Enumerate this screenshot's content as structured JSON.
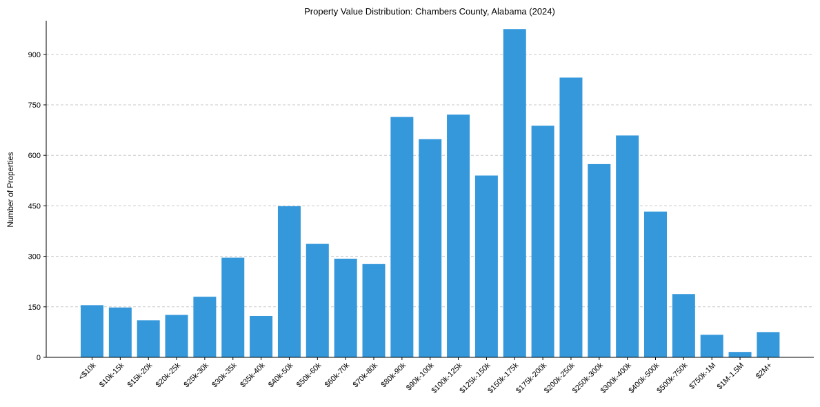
{
  "chart_data": {
    "type": "bar",
    "title": "Property Value Distribution: Chambers County, Alabama (2024)",
    "xlabel": "",
    "ylabel": "Number of Properties",
    "ylim": [
      0,
      1000
    ],
    "yticks": [
      0,
      150,
      300,
      450,
      600,
      750,
      900
    ],
    "grid": "y-dashed",
    "bar_color": "#3498db",
    "categories": [
      "<$10k",
      "$10k-15k",
      "$15k-20k",
      "$20k-25k",
      "$25k-30k",
      "$30k-35k",
      "$35k-40k",
      "$40k-50k",
      "$50k-60k",
      "$60k-70k",
      "$70k-80k",
      "$80k-90k",
      "$90k-100k",
      "$100k-125k",
      "$125k-150k",
      "$150k-175k",
      "$175k-200k",
      "$200k-250k",
      "$250k-300k",
      "$300k-400k",
      "$400k-500k",
      "$500k-750k",
      "$750k-1M",
      "$1M-1.5M",
      "$2M+"
    ],
    "values": [
      155,
      148,
      110,
      126,
      180,
      296,
      123,
      449,
      337,
      293,
      277,
      714,
      648,
      721,
      540,
      975,
      688,
      831,
      574,
      659,
      433,
      188,
      67,
      16,
      75
    ]
  }
}
